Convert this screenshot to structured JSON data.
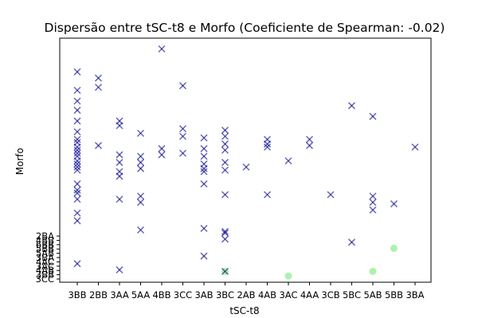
{
  "chart_data": {
    "type": "scatter",
    "title": "Dispersão entre tSC-t8 e Morfo (Coeficiente de Spearman: -0.02)",
    "xlabel": "tSC-t8",
    "ylabel": "Morfo",
    "grid": false,
    "categories": [
      "3BB",
      "2BB",
      "3AA",
      "5AA",
      "4BB",
      "3CC",
      "3AB",
      "3BC",
      "2AB",
      "4AB",
      "3AC",
      "4AA",
      "3CB",
      "5BC",
      "5AB",
      "5BB",
      "3BA"
    ],
    "y_tick_labels": [
      "2BA",
      "4BB",
      "6BB",
      "5BB",
      "5AB",
      "3BA",
      "4AC",
      "3AC",
      "4AB",
      "3BB",
      "3CC"
    ],
    "markers": {
      "cross_color": "#00008b",
      "circle_color": "#90ee90",
      "overlap_color": "#2e8b8b"
    },
    "points": [
      {
        "x": "3BB",
        "y": 1.0
      },
      {
        "x": "3BB",
        "y": 3.8
      },
      {
        "x": "3BB",
        "y": 4.3
      },
      {
        "x": "3BB",
        "y": 5.2
      },
      {
        "x": "3BB",
        "y": 5.6
      },
      {
        "x": "3BB",
        "y": 5.8
      },
      {
        "x": "3BB",
        "y": 6.2
      },
      {
        "x": "3BB",
        "y": 7.1
      },
      {
        "x": "3BB",
        "y": 7.3
      },
      {
        "x": "3BB",
        "y": 7.5
      },
      {
        "x": "3BB",
        "y": 7.7
      },
      {
        "x": "3BB",
        "y": 8.0
      },
      {
        "x": "3BB",
        "y": 8.2
      },
      {
        "x": "3BB",
        "y": 8.4
      },
      {
        "x": "3BB",
        "y": 8.6
      },
      {
        "x": "3BB",
        "y": 8.9
      },
      {
        "x": "3BB",
        "y": 9.1
      },
      {
        "x": "3BB",
        "y": 9.6
      },
      {
        "x": "3BB",
        "y": 10.3
      },
      {
        "x": "3BB",
        "y": 11.0
      },
      {
        "x": "3BB",
        "y": 11.6
      },
      {
        "x": "3BB",
        "y": 12.3
      },
      {
        "x": "3BB",
        "y": 13.5
      },
      {
        "x": "2BB",
        "y": 8.7
      },
      {
        "x": "2BB",
        "y": 12.5
      },
      {
        "x": "2BB",
        "y": 13.1
      },
      {
        "x": "3AA",
        "y": 0.6
      },
      {
        "x": "3AA",
        "y": 5.2
      },
      {
        "x": "3AA",
        "y": 6.7
      },
      {
        "x": "3AA",
        "y": 7.0
      },
      {
        "x": "3AA",
        "y": 7.6
      },
      {
        "x": "3AA",
        "y": 8.1
      },
      {
        "x": "3AA",
        "y": 10.0
      },
      {
        "x": "3AA",
        "y": 10.3
      },
      {
        "x": "5AA",
        "y": 3.2
      },
      {
        "x": "5AA",
        "y": 5.0
      },
      {
        "x": "5AA",
        "y": 5.4
      },
      {
        "x": "5AA",
        "y": 7.2
      },
      {
        "x": "5AA",
        "y": 7.6
      },
      {
        "x": "5AA",
        "y": 8.0
      },
      {
        "x": "5AA",
        "y": 9.5
      },
      {
        "x": "4BB",
        "y": 8.1
      },
      {
        "x": "4BB",
        "y": 8.5
      },
      {
        "x": "4BB",
        "y": 15.0
      },
      {
        "x": "3CC",
        "y": 8.2
      },
      {
        "x": "3CC",
        "y": 9.3
      },
      {
        "x": "3CC",
        "y": 9.8
      },
      {
        "x": "3CC",
        "y": 12.6
      },
      {
        "x": "3AB",
        "y": 1.5
      },
      {
        "x": "3AB",
        "y": 3.3
      },
      {
        "x": "3AB",
        "y": 6.2
      },
      {
        "x": "3AB",
        "y": 7.0
      },
      {
        "x": "3AB",
        "y": 7.2
      },
      {
        "x": "3AB",
        "y": 7.5
      },
      {
        "x": "3AB",
        "y": 8.0
      },
      {
        "x": "3AB",
        "y": 8.5
      },
      {
        "x": "3AB",
        "y": 9.2
      },
      {
        "x": "3BC",
        "y": 0.5
      },
      {
        "x": "3BC",
        "y": 2.6
      },
      {
        "x": "3BC",
        "y": 3.0
      },
      {
        "x": "3BC",
        "y": 3.1
      },
      {
        "x": "3BC",
        "y": 5.5
      },
      {
        "x": "3BC",
        "y": 7.1
      },
      {
        "x": "3BC",
        "y": 7.6
      },
      {
        "x": "3BC",
        "y": 8.4
      },
      {
        "x": "3BC",
        "y": 8.8
      },
      {
        "x": "3BC",
        "y": 9.3
      },
      {
        "x": "3BC",
        "y": 9.7
      },
      {
        "x": "2AB",
        "y": 7.3
      },
      {
        "x": "4AB",
        "y": 5.5
      },
      {
        "x": "4AB",
        "y": 8.6
      },
      {
        "x": "4AB",
        "y": 8.8
      },
      {
        "x": "4AB",
        "y": 9.1
      },
      {
        "x": "3AC",
        "y": 7.7
      },
      {
        "x": "4AA",
        "y": 8.7
      },
      {
        "x": "4AA",
        "y": 9.1
      },
      {
        "x": "3CB",
        "y": 5.5
      },
      {
        "x": "5BC",
        "y": 2.4
      },
      {
        "x": "5BC",
        "y": 11.3
      },
      {
        "x": "5AB",
        "y": 4.5
      },
      {
        "x": "5AB",
        "y": 5.0
      },
      {
        "x": "5AB",
        "y": 5.4
      },
      {
        "x": "5AB",
        "y": 10.6
      },
      {
        "x": "5BB",
        "y": 4.9
      },
      {
        "x": "3BA",
        "y": 8.6
      }
    ],
    "circle_points": [
      {
        "x": "3BC",
        "y": 0.5
      },
      {
        "x": "3AC",
        "y": 0.2
      },
      {
        "x": "5AB",
        "y": 0.5
      },
      {
        "x": "5BB",
        "y": 2.0
      }
    ]
  }
}
